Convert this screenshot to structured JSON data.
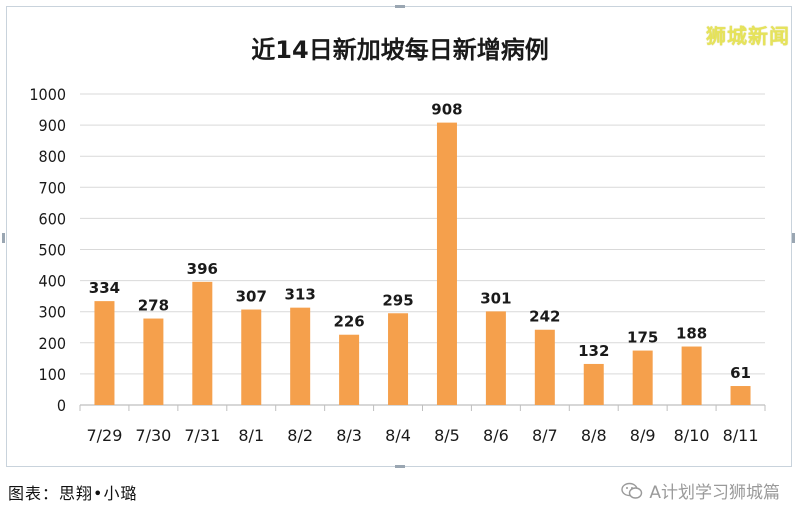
{
  "watermark_text": "狮城新闻",
  "caption_text": "图表：思翔•小璐",
  "wechat_text": "A计划学习狮城篇",
  "wechat_icon": "wechat-icon",
  "colors": {
    "bar": "#f5a04c",
    "grid": "#d9d9d9",
    "axis": "#bfbfbf",
    "text": "#1a1a1a"
  },
  "chart_data": {
    "type": "bar",
    "title": "近14日新加坡每日新增病例",
    "xlabel": "",
    "ylabel": "",
    "ylim": [
      0,
      1000
    ],
    "yticks": [
      "0",
      "100",
      "200",
      "300",
      "400",
      "500",
      "600",
      "700",
      "800",
      "900",
      "1000"
    ],
    "categories": [
      "7/29",
      "7/30",
      "7/31",
      "8/1",
      "8/2",
      "8/3",
      "8/4",
      "8/5",
      "8/6",
      "8/7",
      "8/8",
      "8/9",
      "8/10",
      "8/11"
    ],
    "values": [
      334,
      278,
      396,
      307,
      313,
      226,
      295,
      908,
      301,
      242,
      132,
      175,
      188,
      61
    ],
    "grid": true
  }
}
